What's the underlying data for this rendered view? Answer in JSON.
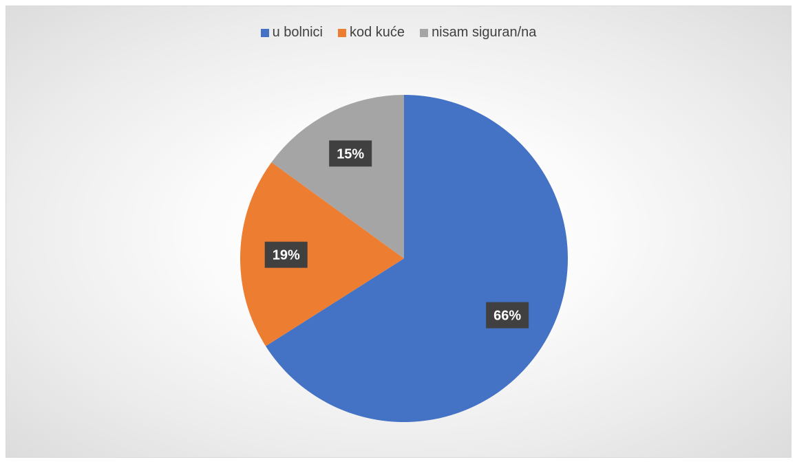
{
  "chart_data": {
    "type": "pie",
    "title": "",
    "categories": [
      "u bolnici",
      "kod kuće",
      "nisam siguran/na"
    ],
    "values": [
      66,
      19,
      15
    ],
    "value_labels": [
      "66%",
      "19%",
      "15%"
    ],
    "colors": [
      "#4472C4",
      "#ED7D31",
      "#A5A5A5"
    ],
    "legend_position": "top",
    "start_angle": "12 o'clock",
    "direction": "clockwise"
  }
}
